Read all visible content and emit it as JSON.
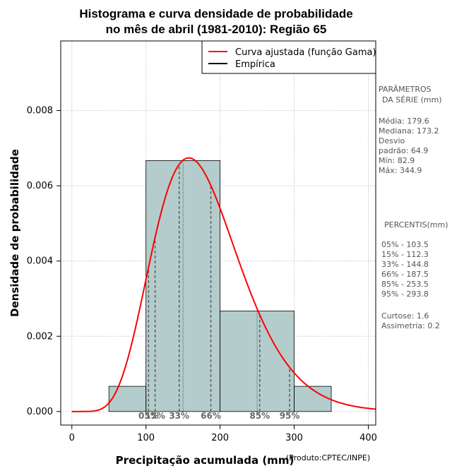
{
  "chart_data": {
    "type": "bar",
    "title_lines": [
      "Histograma e curva densidade de probabilidade",
      "no mês de abril (1981-2010): Região 65"
    ],
    "xlabel": "Precipitação acumulada (mm)",
    "ylabel": "Densidade de probabilidade",
    "credit": "(Produto:CPTEC/INPE)",
    "xlim": [
      -15,
      410
    ],
    "ylim": [
      -0.00036,
      0.00985
    ],
    "x_ticks": [
      0,
      100,
      200,
      300,
      400
    ],
    "y_ticks": [
      0.0,
      0.002,
      0.004,
      0.006,
      0.008
    ],
    "y_tick_labels": [
      "0.000",
      "0.002",
      "0.004",
      "0.006",
      "0.008"
    ],
    "grid": true,
    "bins": [
      {
        "x0": 50,
        "x1": 100,
        "density": 0.00067
      },
      {
        "x0": 100,
        "x1": 150,
        "density": 0.00667
      },
      {
        "x0": 150,
        "x1": 200,
        "density": 0.00667
      },
      {
        "x0": 200,
        "x1": 250,
        "density": 0.00267
      },
      {
        "x0": 250,
        "x1": 300,
        "density": 0.00267
      },
      {
        "x0": 300,
        "x1": 350,
        "density": 0.00067
      }
    ],
    "gamma_fit": {
      "shape": 8.27,
      "scale": 21.7
    },
    "percentiles": [
      {
        "label": "05%",
        "value": 103.5
      },
      {
        "label": "15%",
        "value": 112.3
      },
      {
        "label": "33%",
        "value": 144.8
      },
      {
        "label": "66%",
        "value": 187.5
      },
      {
        "label": "85%",
        "value": 253.5
      },
      {
        "label": "95%",
        "value": 293.8
      }
    ],
    "legend": {
      "placement": "top-right",
      "entries": [
        {
          "name": "Curva ajustada (função Gama)",
          "color": "#ff0000"
        },
        {
          "name": "Empírica",
          "color": "#000000"
        }
      ]
    },
    "colors": {
      "bar_fill": "#b4cccc",
      "curve": "#ff0000",
      "percentile_line": "#555555"
    }
  },
  "side_panel": {
    "params_title_1": "PARÂMETROS",
    "params_title_2": "DA SÉRIE (mm)",
    "media": "Média:  179.6",
    "mediana": "Mediana:  173.2",
    "desvio_1": "Desvio",
    "desvio_2": "padrão:  64.9",
    "min": "Mín:  82.9",
    "max": "Máx:  344.9",
    "percentis_title": "PERCENTIS(mm)",
    "p05": "05% -  103.5",
    "p15": "15% -  112.3",
    "p33": "33% -  144.8",
    "p66": "66% -  187.5",
    "p85": "85% -  253.5",
    "p95": "95% -  293.8",
    "curtose": "Curtose:  1.6",
    "assimetria": "Assimetria:  0.2"
  }
}
